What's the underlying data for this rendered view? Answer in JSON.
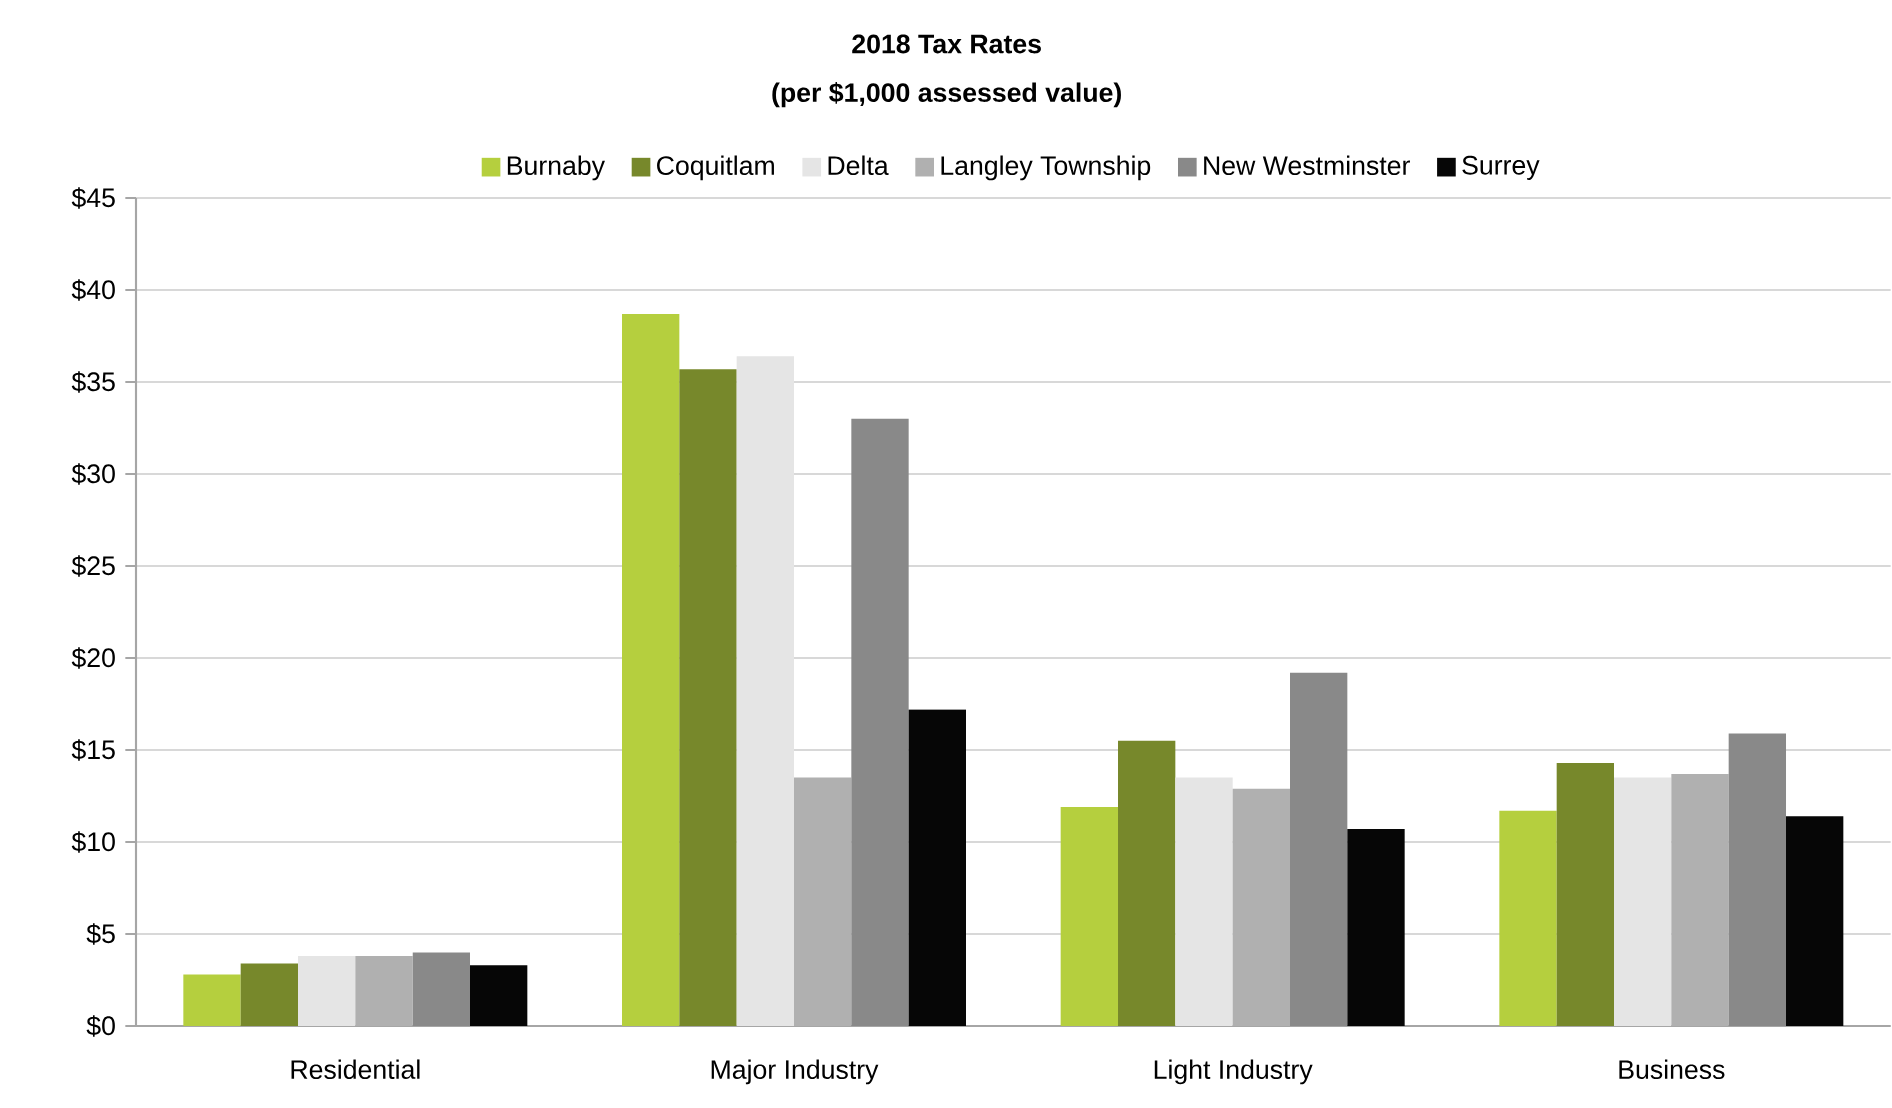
{
  "chart_data": {
    "type": "bar",
    "title": "2018 Tax Rates",
    "subtitle": "(per $1,000 assessed value)",
    "categories": [
      "Residential",
      "Major Industry",
      "Light Industry",
      "Business"
    ],
    "series": [
      {
        "name": "Burnaby",
        "color": "#b5cf3e",
        "values": [
          2.8,
          38.7,
          11.9,
          11.7
        ]
      },
      {
        "name": "Coquitlam",
        "color": "#77882b",
        "values": [
          3.4,
          35.7,
          15.5,
          14.3
        ]
      },
      {
        "name": "Delta",
        "color": "#e5e5e5",
        "values": [
          3.8,
          36.4,
          13.5,
          13.5
        ]
      },
      {
        "name": "Langley Township",
        "color": "#b0b0b0",
        "values": [
          3.8,
          13.5,
          12.9,
          13.7
        ]
      },
      {
        "name": "New Westminster",
        "color": "#898989",
        "values": [
          4.0,
          33.0,
          19.2,
          15.9
        ]
      },
      {
        "name": "Surrey",
        "color": "#060606",
        "values": [
          3.3,
          17.2,
          10.7,
          11.4
        ]
      }
    ],
    "ylim": [
      0,
      45
    ],
    "yticks": [
      {
        "value": 0,
        "label": "$0"
      },
      {
        "value": 5,
        "label": "$5"
      },
      {
        "value": 10,
        "label": "$10"
      },
      {
        "value": 15,
        "label": "$15"
      },
      {
        "value": 20,
        "label": "$20"
      },
      {
        "value": 25,
        "label": "$25"
      },
      {
        "value": 30,
        "label": "$30"
      },
      {
        "value": 35,
        "label": "$35"
      },
      {
        "value": 40,
        "label": "$40"
      },
      {
        "value": 45,
        "label": "$45"
      }
    ],
    "grid": "y",
    "legend": "top"
  }
}
